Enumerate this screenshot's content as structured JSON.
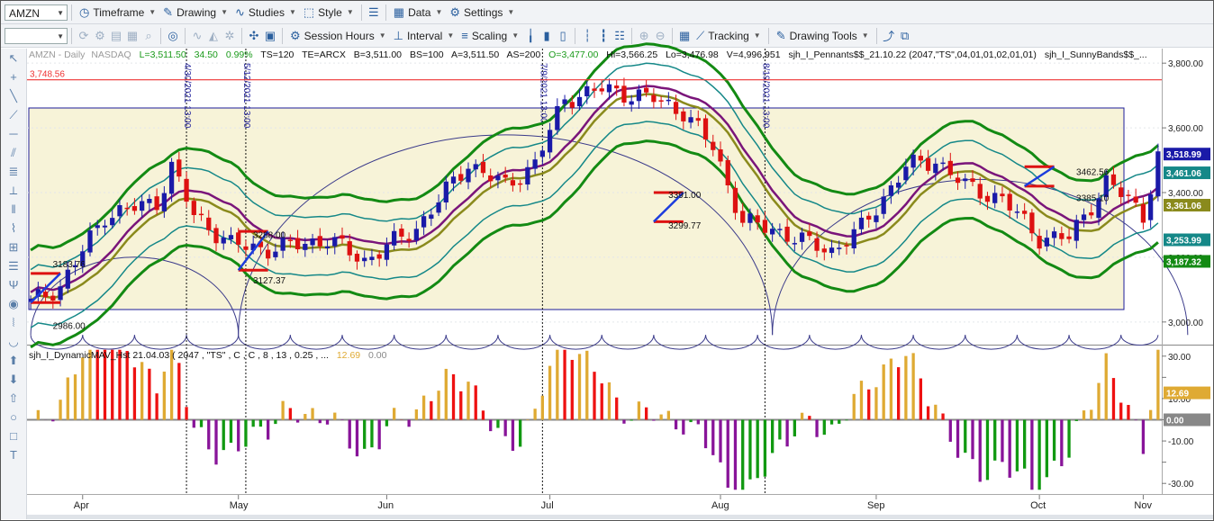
{
  "toolbar1": {
    "symbol": "AMZN",
    "timeframe": "Timeframe",
    "drawing": "Drawing",
    "studies": "Studies",
    "style": "Style",
    "data": "Data",
    "settings": "Settings"
  },
  "toolbar2": {
    "session_hours": "Session Hours",
    "interval": "Interval",
    "scaling": "Scaling",
    "tracking": "Tracking",
    "drawing_tools": "Drawing Tools"
  },
  "header": {
    "instrument": "AMZN - Daily",
    "exchange": "NASDAQ",
    "last": "L=3,511.50",
    "change": "34.50",
    "change_pct": "0.99%",
    "ts": "TS=120",
    "te": "TE=ARCX",
    "bid": "B=3,511.00",
    "bs": "BS=100",
    "ask": "A=3,511.50",
    "as": "AS=200",
    "open": "O=3,477.00",
    "high": "Hi=3,566.25",
    "low": "Lo=3,476.98",
    "volume": "V=4,996,951",
    "study1": "sjh_I_Pennants$$_21.10.22 (2047,\"TS\",04,01,01,02,01,01)",
    "study2": "sjh_I_SunnyBands$$_..."
  },
  "colors": {
    "up_candle": "#1a1aa8",
    "down_candle": "#dd1111",
    "band_outer": "#138a13",
    "band_mid": "#158888",
    "band_inner": "#7a157a",
    "band_center": "#8a8a1c",
    "box_fill": "#f7f3d8",
    "resistance": "#ee3333",
    "hist_yellow": "#dfaa33",
    "hist_red": "#ee1111",
    "hist_green": "#119911",
    "hist_purple": "#881499"
  },
  "chart_data": [
    {
      "type": "candlestick",
      "x_tick_labels": [
        "Apr",
        "May",
        "Jun",
        "Jul",
        "Aug",
        "Sep",
        "Oct",
        "Nov"
      ],
      "y_tick_labels": [
        "3,800.00",
        "3,600.00",
        "3,400.00",
        "3,200.00",
        "3,000.00"
      ],
      "y_ticks": [
        3800,
        3600,
        3400,
        3200,
        3000
      ],
      "ylim": [
        2930,
        3845
      ],
      "resistance_level": 3748.56,
      "resistance_label": "3,748.56",
      "vertical_markers": [
        "4/30/2021 13:00",
        "5/12/2021 13:00",
        "7/9/2021 13:00",
        "8/19/2021 13:00"
      ],
      "annotations": [
        "3183.76",
        "2986.00",
        "3288.00",
        "3127.37",
        "3391.00",
        "3299.77",
        "3462.56",
        "3385.10"
      ],
      "price_badges": [
        {
          "value": 3518.99,
          "label": "3,518.99",
          "color": "#1a1aa8"
        },
        {
          "value": 3461.06,
          "label": "3,461.06",
          "color": "#158888"
        },
        {
          "value": 3361.06,
          "label": "3,361.06",
          "color": "#8a8a1c"
        },
        {
          "value": 3253.99,
          "label": "3,253.99",
          "color": "#158888"
        },
        {
          "value": 3187.32,
          "label": "3,187.32",
          "color": "#138a13"
        }
      ]
    },
    {
      "type": "bar",
      "title": "sjh_I_DynamicMAV_Hst 21.04.03 ( 2047 , \"TS\" , C , C ,  8 , 13 , 0.25 , ...",
      "current_value": "12.69",
      "zero_value": "0.00",
      "y_tick_labels": [
        "30.00",
        "20.00",
        "10.00",
        "0.00",
        "-10.00",
        "-20.00",
        "-30.00"
      ],
      "y_ticks": [
        30,
        20,
        10,
        0,
        -10,
        -20,
        -30
      ],
      "ylim": [
        -35,
        35
      ],
      "price_badges": [
        {
          "value": 12.69,
          "label": "12.69",
          "color": "#dfaa33"
        },
        {
          "value": 0,
          "label": "0.00",
          "color": "#888888"
        }
      ]
    }
  ]
}
